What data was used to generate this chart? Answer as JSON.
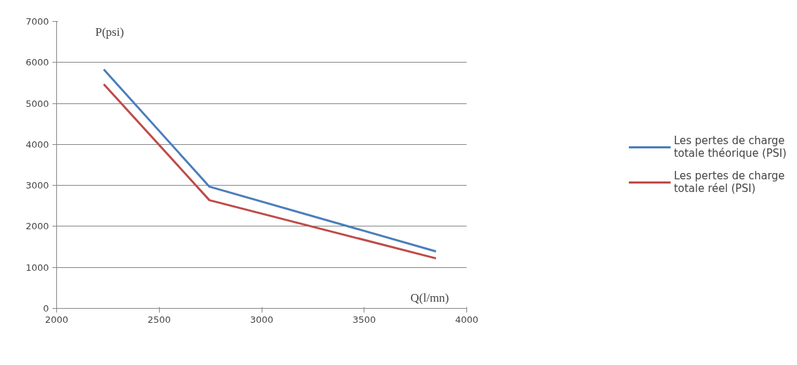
{
  "chart_data": {
    "type": "line",
    "xlabel": "Q(l/mn)",
    "ylabel": "P(psi)",
    "xlim": [
      2000,
      4000
    ],
    "xticks": [
      2000,
      2500,
      3000,
      3500,
      4000
    ],
    "ylim": [
      0,
      7000
    ],
    "yticks": [
      0,
      1000,
      2000,
      3000,
      4000,
      5000,
      6000,
      7000
    ],
    "grid": "y",
    "legend": "right",
    "marker": "none",
    "line_style": "solid",
    "series": [
      {
        "name": "Les pertes de charge totale théorique (PSI)",
        "color": "#4a7ebb",
        "x": [
          2230,
          2745,
          3850
        ],
        "values": [
          5830,
          2970,
          1390
        ]
      },
      {
        "name": "Les pertes de charge totale réel (PSI)",
        "color": "#be4b48",
        "x": [
          2230,
          2745,
          3850
        ],
        "values": [
          5470,
          2640,
          1220
        ]
      }
    ]
  }
}
